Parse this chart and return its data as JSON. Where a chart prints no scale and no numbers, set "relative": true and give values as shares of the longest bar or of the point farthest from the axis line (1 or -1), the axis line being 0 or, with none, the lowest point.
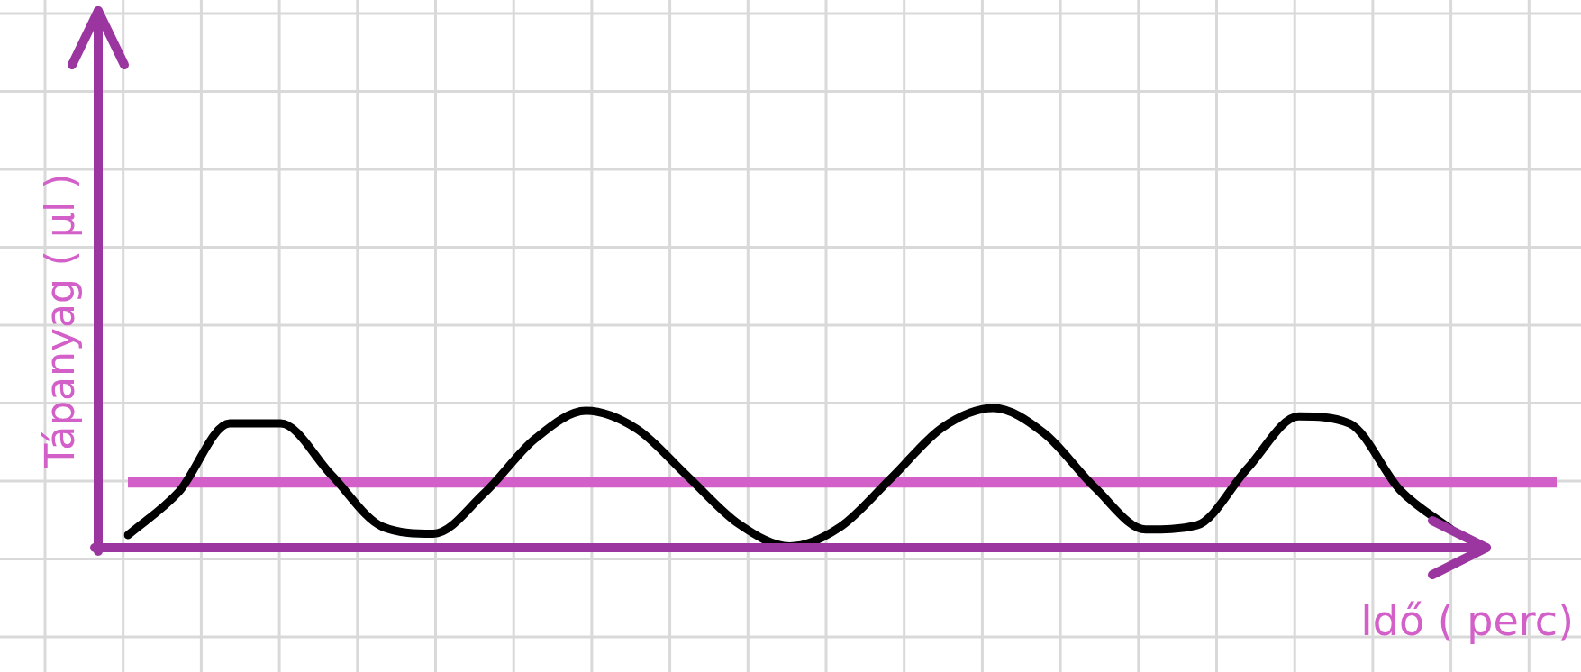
{
  "chart_data": {
    "type": "line",
    "relative": true,
    "xlabel": "Idő ( perc)",
    "ylabel": "Tápanyag ( µl )",
    "categories": [
      null,
      null,
      null,
      null,
      null,
      null,
      null,
      null,
      null,
      null,
      null,
      null,
      null,
      null,
      null,
      null,
      null,
      null,
      null,
      null,
      null,
      null,
      null,
      null,
      null,
      null,
      null
    ],
    "series": [
      {
        "color": "#000000",
        "values": [
          0.09,
          0.4,
          0.89,
          0.89,
          0.52,
          0.15,
          0.1,
          0.39,
          0.78,
          0.98,
          0.85,
          0.51,
          0.17,
          0.01,
          0.15,
          0.5,
          0.86,
          1.0,
          0.82,
          0.43,
          0.13,
          0.16,
          0.57,
          0.94,
          0.89,
          0.41,
          0.13
        ]
      }
    ],
    "ref_lines": [
      {
        "axis": "y",
        "value": 0.47,
        "color": "#d35fc8"
      }
    ],
    "grid": true,
    "marker": "none",
    "line_style": "solid"
  }
}
